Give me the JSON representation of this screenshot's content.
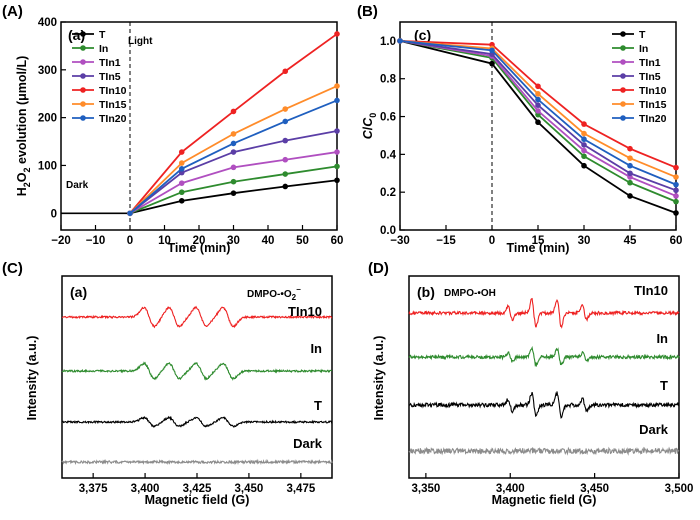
{
  "chart_data": [
    {
      "panel": "(A)",
      "tag": "(a)",
      "type": "line",
      "xlabel": "Time (min)",
      "ylabel": "H2O2 evolution (μmol/L)",
      "ylabel_parts": [
        "H",
        "2",
        "O",
        "2",
        " evolution (μmol/L)"
      ],
      "xlim": [
        -20,
        60
      ],
      "ylim": [
        -35,
        400
      ],
      "xticks": [
        -20,
        -10,
        0,
        10,
        20,
        30,
        40,
        50,
        60
      ],
      "yticks": [
        0,
        100,
        200,
        300,
        400
      ],
      "dark_label": "Dark",
      "light_label": "Light",
      "legend_position": "top-left",
      "dark_phase": {
        "x": [
          -20,
          0
        ],
        "y": [
          0,
          0
        ]
      },
      "x": [
        0,
        15,
        30,
        45,
        60
      ],
      "series": [
        {
          "name": "T",
          "color": "#000000",
          "values": [
            0,
            26,
            42,
            56,
            69
          ]
        },
        {
          "name": "In",
          "color": "#2e8b2e",
          "values": [
            0,
            44,
            66,
            82,
            98
          ]
        },
        {
          "name": "TIn1",
          "color": "#b04fc0",
          "values": [
            0,
            63,
            96,
            112,
            128
          ]
        },
        {
          "name": "TIn5",
          "color": "#5b3ea6",
          "values": [
            0,
            85,
            128,
            152,
            172
          ]
        },
        {
          "name": "TIn10",
          "color": "#ee2222",
          "values": [
            0,
            128,
            213,
            297,
            375
          ]
        },
        {
          "name": "TIn15",
          "color": "#ff8c2a",
          "values": [
            0,
            105,
            166,
            218,
            266
          ]
        },
        {
          "name": "TIn20",
          "color": "#1f5fbf",
          "values": [
            0,
            93,
            146,
            192,
            236
          ]
        }
      ]
    },
    {
      "panel": "(B)",
      "tag": "(c)",
      "type": "line",
      "xlabel": "Time (min)",
      "ylabel": "C/C0",
      "ylabel_parts": [
        "C",
        "/",
        "C",
        "0"
      ],
      "xlim": [
        -30,
        60
      ],
      "ylim": [
        0,
        1.1
      ],
      "xticks": [
        -30,
        -15,
        0,
        15,
        30,
        45,
        60
      ],
      "yticks": [
        0.0,
        0.2,
        0.4,
        0.6,
        0.8,
        1.0
      ],
      "ytick_labels": [
        "0.0",
        "0.2",
        "0.4",
        "0.6",
        "0.8",
        "1.0"
      ],
      "legend_position": "top-right",
      "x": [
        -30,
        0,
        15,
        30,
        45,
        60
      ],
      "series": [
        {
          "name": "T",
          "color": "#000000",
          "values": [
            1.0,
            0.88,
            0.57,
            0.34,
            0.18,
            0.09
          ]
        },
        {
          "name": "In",
          "color": "#2e8b2e",
          "values": [
            1.0,
            0.91,
            0.61,
            0.39,
            0.25,
            0.15
          ]
        },
        {
          "name": "TIn1",
          "color": "#b04fc0",
          "values": [
            1.0,
            0.92,
            0.63,
            0.42,
            0.28,
            0.18
          ]
        },
        {
          "name": "TIn5",
          "color": "#5b3ea6",
          "values": [
            1.0,
            0.93,
            0.66,
            0.45,
            0.3,
            0.21
          ]
        },
        {
          "name": "TIn10",
          "color": "#ee2222",
          "values": [
            1.0,
            0.98,
            0.76,
            0.56,
            0.43,
            0.33
          ]
        },
        {
          "name": "TIn15",
          "color": "#ff8c2a",
          "values": [
            1.0,
            0.96,
            0.72,
            0.51,
            0.38,
            0.28
          ]
        },
        {
          "name": "TIn20",
          "color": "#1f5fbf",
          "values": [
            1.0,
            0.95,
            0.69,
            0.48,
            0.34,
            0.24
          ]
        }
      ]
    },
    {
      "panel": "(C)",
      "tag": "(a)",
      "type": "line",
      "xlabel": "Magnetic field (G)",
      "ylabel": "Intensity (a.u.)",
      "xlim": [
        3360,
        3490
      ],
      "xticks": [
        3375,
        3400,
        3425,
        3450,
        3475
      ],
      "xtick_labels": [
        "3,375",
        "3,400",
        "3,425",
        "3,450",
        "3,475"
      ],
      "species_label": "DMPO-•O2−",
      "species_parts": [
        "DMPO-•O",
        "2",
        "−"
      ],
      "signal": "DMPO-superoxide adduct, four main lines",
      "line_positions": [
        3402,
        3414,
        3427,
        3440
      ],
      "series": [
        {
          "name": "TIn10",
          "color": "#ee2222",
          "amplitude": 1.0,
          "noise": 0.05,
          "label_position": "right"
        },
        {
          "name": "In",
          "color": "#2e8b2e",
          "amplitude": 0.8,
          "noise": 0.05,
          "label_position": "right"
        },
        {
          "name": "T",
          "color": "#000000",
          "amplitude": 0.45,
          "noise": 0.05,
          "label_position": "right"
        },
        {
          "name": "Dark",
          "color": "#8c8c8c",
          "amplitude": 0.0,
          "noise": 0.07,
          "label_position": "right"
        }
      ]
    },
    {
      "panel": "(D)",
      "tag": "(b)",
      "type": "line",
      "xlabel": "Magnetic field (G)",
      "ylabel": "Intensity (a.u.)",
      "xlim": [
        3340,
        3500
      ],
      "xticks": [
        3350,
        3400,
        3450,
        3500
      ],
      "xtick_labels": [
        "3,350",
        "3,400",
        "3,450",
        "3,500"
      ],
      "species_label": "DMPO-•OH",
      "signal": "DMPO-hydroxyl adduct, 1:2:2:1 quartet",
      "line_positions": [
        3400,
        3414,
        3429,
        3444
      ],
      "line_weights": [
        1,
        2,
        2,
        1
      ],
      "series": [
        {
          "name": "TIn10",
          "color": "#ee2222",
          "amplitude": 1.0,
          "noise": 0.12,
          "label_position": "right"
        },
        {
          "name": "In",
          "color": "#2e8b2e",
          "amplitude": 0.6,
          "noise": 0.13,
          "label_position": "right"
        },
        {
          "name": "T",
          "color": "#000000",
          "amplitude": 0.85,
          "noise": 0.15,
          "label_position": "right"
        },
        {
          "name": "Dark",
          "color": "#8c8c8c",
          "amplitude": 0.0,
          "noise": 0.22,
          "label_position": "right"
        }
      ]
    }
  ]
}
